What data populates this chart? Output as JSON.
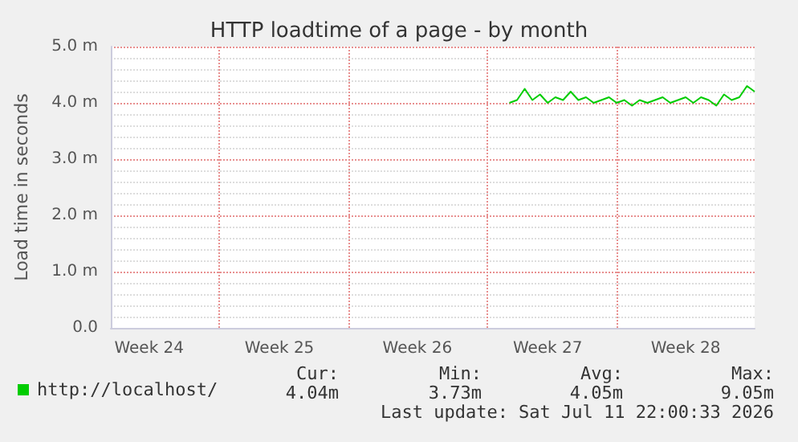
{
  "chart_data": {
    "type": "line",
    "title": "HTTP loadtime of a page - by month",
    "ylabel": "Load time in seconds",
    "categories": [
      null,
      null,
      null,
      null,
      null,
      "Week 24",
      null,
      null,
      null,
      null,
      null,
      null,
      null,
      null,
      null,
      null,
      null,
      null,
      null,
      null,
      null,
      null,
      "Week 25",
      null,
      null,
      null,
      null,
      null,
      null,
      null,
      null,
      null,
      null,
      null,
      null,
      null,
      null,
      null,
      null,
      null,
      "Week 26",
      null,
      null,
      null,
      null,
      null,
      null,
      null,
      null,
      null,
      null,
      null,
      null,
      null,
      null,
      null,
      null,
      "Week 27",
      null,
      null,
      null,
      null,
      null,
      null,
      null,
      null,
      null,
      null,
      null,
      null,
      null,
      null,
      null,
      null,
      null,
      "Week 28",
      null,
      null,
      null,
      null,
      null,
      null,
      null,
      null,
      null
    ],
    "ylim": [
      0,
      5
    ],
    "yticks": [
      {
        "value": 0,
        "label": "0.0"
      },
      {
        "value": 1,
        "label": "1.0 m"
      },
      {
        "value": 2,
        "label": "2.0 m"
      },
      {
        "value": 3,
        "label": "3.0 m"
      },
      {
        "value": 4,
        "label": "4.0 m"
      },
      {
        "value": 5,
        "label": "5.0 m"
      }
    ],
    "grid": true,
    "legend": "bottom left",
    "marker": "none",
    "line_style": "solid",
    "series": [
      {
        "name": "http://localhost/",
        "color": "#00cc00",
        "values": [
          null,
          null,
          null,
          null,
          null,
          null,
          null,
          null,
          null,
          null,
          null,
          null,
          null,
          null,
          null,
          null,
          null,
          null,
          null,
          null,
          null,
          null,
          null,
          null,
          null,
          null,
          null,
          null,
          null,
          null,
          null,
          null,
          null,
          null,
          null,
          null,
          null,
          null,
          null,
          null,
          null,
          null,
          null,
          null,
          null,
          null,
          null,
          null,
          null,
          null,
          null,
          null,
          4.0,
          4.05,
          4.25,
          4.05,
          4.15,
          4.0,
          4.1,
          4.05,
          4.2,
          4.05,
          4.1,
          4.0,
          4.05,
          4.1,
          4.0,
          4.05,
          3.95,
          4.05,
          4.0,
          4.05,
          4.1,
          4.0,
          4.05,
          4.1,
          4.0,
          4.1,
          4.05,
          3.95,
          4.15,
          4.05,
          4.1,
          4.3,
          4.2
        ]
      }
    ],
    "annotations": [
      "Cur:",
      "Min:",
      "Avg:",
      "Max:",
      "4.04m",
      "3.73m",
      "4.05m",
      "9.05m",
      "Last update: Sat Jul 11 22:00:33 2026"
    ]
  }
}
